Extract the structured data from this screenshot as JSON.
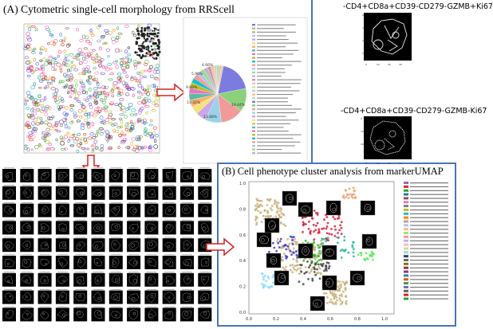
{
  "panel_a": {
    "title": "(A) Cytometric single-cell morphology from RRScell"
  },
  "panel_b": {
    "title": "(B) Cell phenotype cluster analysis from markerUMAP"
  },
  "cell_labels": {
    "top": "-CD4+CD8a+CD39-CD279-GZMB+Ki67",
    "bottom": "-CD4+CD8a+CD39-CD279-GZMB-Ki67"
  },
  "pie": {
    "labels": [
      "19.44%",
      "13.88%",
      "13.32%",
      "9.66%",
      "5.96%",
      "4.66%"
    ]
  },
  "umap": {
    "x_ticks": [
      "0.0",
      "0.2",
      "0.4",
      "0.6",
      "0.8",
      "1.0"
    ],
    "y_ticks": [
      "1.0",
      "0.8",
      "0.6",
      "0.4",
      "0.2",
      "0.0"
    ]
  },
  "colors": {
    "frame_blue": "#4a74b7",
    "arrow_red": "#d62020"
  }
}
